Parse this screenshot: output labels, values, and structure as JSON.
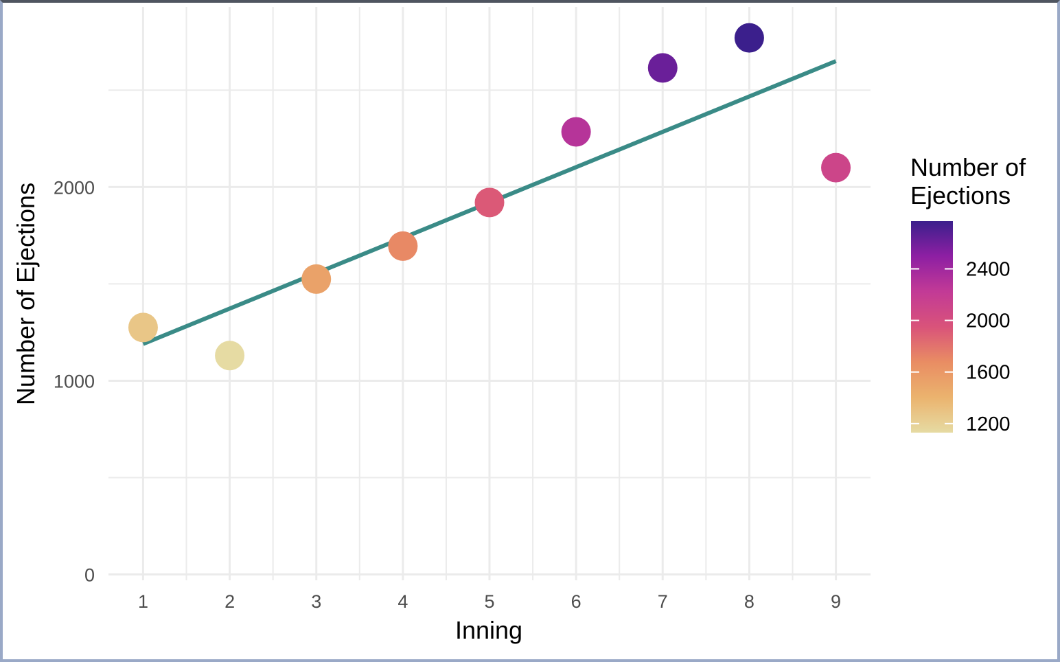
{
  "chart_data": {
    "type": "scatter",
    "xlabel": "Inning",
    "ylabel": "Number of Ejections",
    "x": [
      1,
      2,
      3,
      4,
      5,
      6,
      7,
      8,
      9
    ],
    "values": [
      1275,
      1130,
      1525,
      1695,
      1920,
      2285,
      2615,
      2770,
      2100
    ],
    "xlim": [
      0.6,
      9.4
    ],
    "ylim": [
      -30,
      2930
    ],
    "x_ticks": [
      "1",
      "2",
      "3",
      "4",
      "5",
      "6",
      "7",
      "8",
      "9"
    ],
    "y_ticks": [
      0,
      1000,
      2000
    ],
    "y_tick_labels": [
      "0",
      "1000",
      "2000"
    ],
    "grid": true,
    "trend_line": {
      "x": [
        1,
        9
      ],
      "y": [
        1190,
        2650
      ],
      "color": "#3a8b87"
    },
    "color_scale": {
      "title_lines": [
        "Number of",
        "Ejections"
      ],
      "min": 1130,
      "max": 2770,
      "ticks": [
        1200,
        1600,
        2000,
        2400
      ],
      "tick_labels": [
        "1200",
        "1600",
        "2000",
        "2400"
      ],
      "stops": [
        "#e6dba3",
        "#ebb36e",
        "#e98d63",
        "#d9537a",
        "#c23a96",
        "#8e1fa3",
        "#3b1f8c"
      ],
      "legend_position": "right"
    }
  }
}
